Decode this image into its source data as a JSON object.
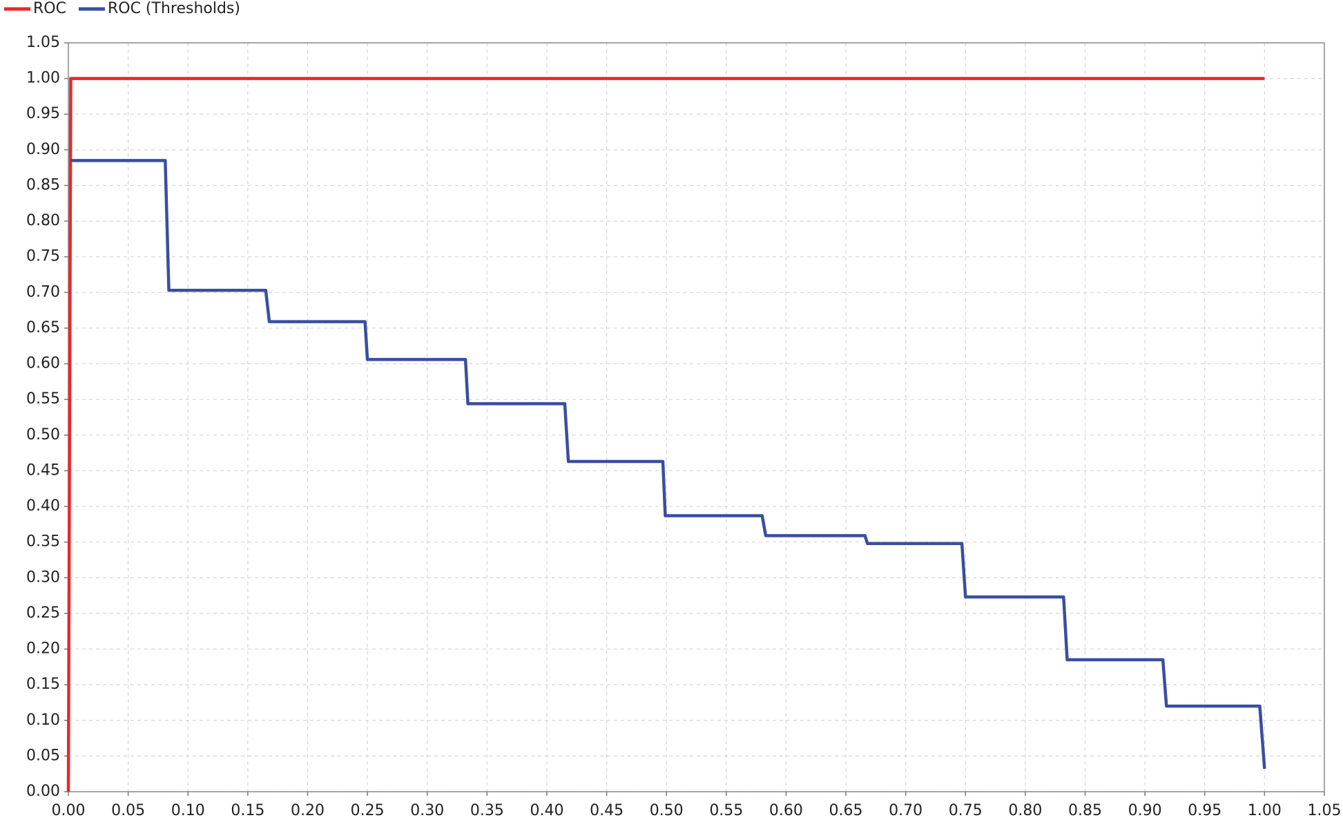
{
  "chart_data": {
    "type": "line",
    "series": [
      {
        "name": "ROC",
        "color": "#e8282b",
        "x": [
          0,
          0.002,
          1
        ],
        "values": [
          0,
          1,
          1
        ]
      },
      {
        "name": "ROC (Thresholds)",
        "color": "#3a4ea0",
        "x": [
          0.002,
          0.081,
          0.084,
          0.165,
          0.168,
          0.248,
          0.25,
          0.332,
          0.334,
          0.415,
          0.418,
          0.497,
          0.499,
          0.58,
          0.583,
          0.666,
          0.668,
          0.747,
          0.75,
          0.832,
          0.835,
          0.915,
          0.918,
          0.996,
          1
        ],
        "values": [
          0.885,
          0.885,
          0.703,
          0.703,
          0.659,
          0.659,
          0.606,
          0.606,
          0.544,
          0.544,
          0.463,
          0.463,
          0.387,
          0.387,
          0.359,
          0.359,
          0.348,
          0.348,
          0.273,
          0.273,
          0.185,
          0.185,
          0.12,
          0.12,
          0.032
        ]
      }
    ],
    "xlim": [
      0,
      1.05
    ],
    "ylim": [
      0,
      1.05
    ],
    "xticks": [
      {
        "value": 0,
        "label": "0.00"
      },
      0.05,
      {
        "value": 0.1,
        "label": "0.10"
      },
      0.15,
      {
        "value": 0.2,
        "label": "0.20"
      },
      0.25,
      {
        "value": 0.3,
        "label": "0.30"
      },
      0.35,
      {
        "value": 0.4,
        "label": "0.40"
      },
      0.45,
      {
        "value": 0.5,
        "label": "0.50"
      },
      0.55,
      {
        "value": 0.6,
        "label": "0.60"
      },
      0.65,
      {
        "value": 0.7,
        "label": "0.70"
      },
      0.75,
      {
        "value": 0.8,
        "label": "0.80"
      },
      0.85,
      {
        "value": 0.9,
        "label": "0.90"
      },
      0.95,
      {
        "value": 1,
        "label": "1.00"
      },
      1.05
    ],
    "yticks": [
      {
        "value": 0,
        "label": "0.00"
      },
      0.05,
      {
        "value": 0.1,
        "label": "0.10"
      },
      0.15,
      {
        "value": 0.2,
        "label": "0.20"
      },
      0.25,
      {
        "value": 0.3,
        "label": "0.30"
      },
      0.35,
      {
        "value": 0.4,
        "label": "0.40"
      },
      0.45,
      {
        "value": 0.5,
        "label": "0.50"
      },
      0.55,
      {
        "value": 0.6,
        "label": "0.60"
      },
      0.65,
      {
        "value": 0.7,
        "label": "0.70"
      },
      0.75,
      {
        "value": 0.8,
        "label": "0.80"
      },
      0.85,
      {
        "value": 0.9,
        "label": "0.90"
      },
      0.95,
      {
        "value": 1,
        "label": "1.00"
      },
      1.05
    ],
    "grid": true,
    "legend": "top-left"
  }
}
